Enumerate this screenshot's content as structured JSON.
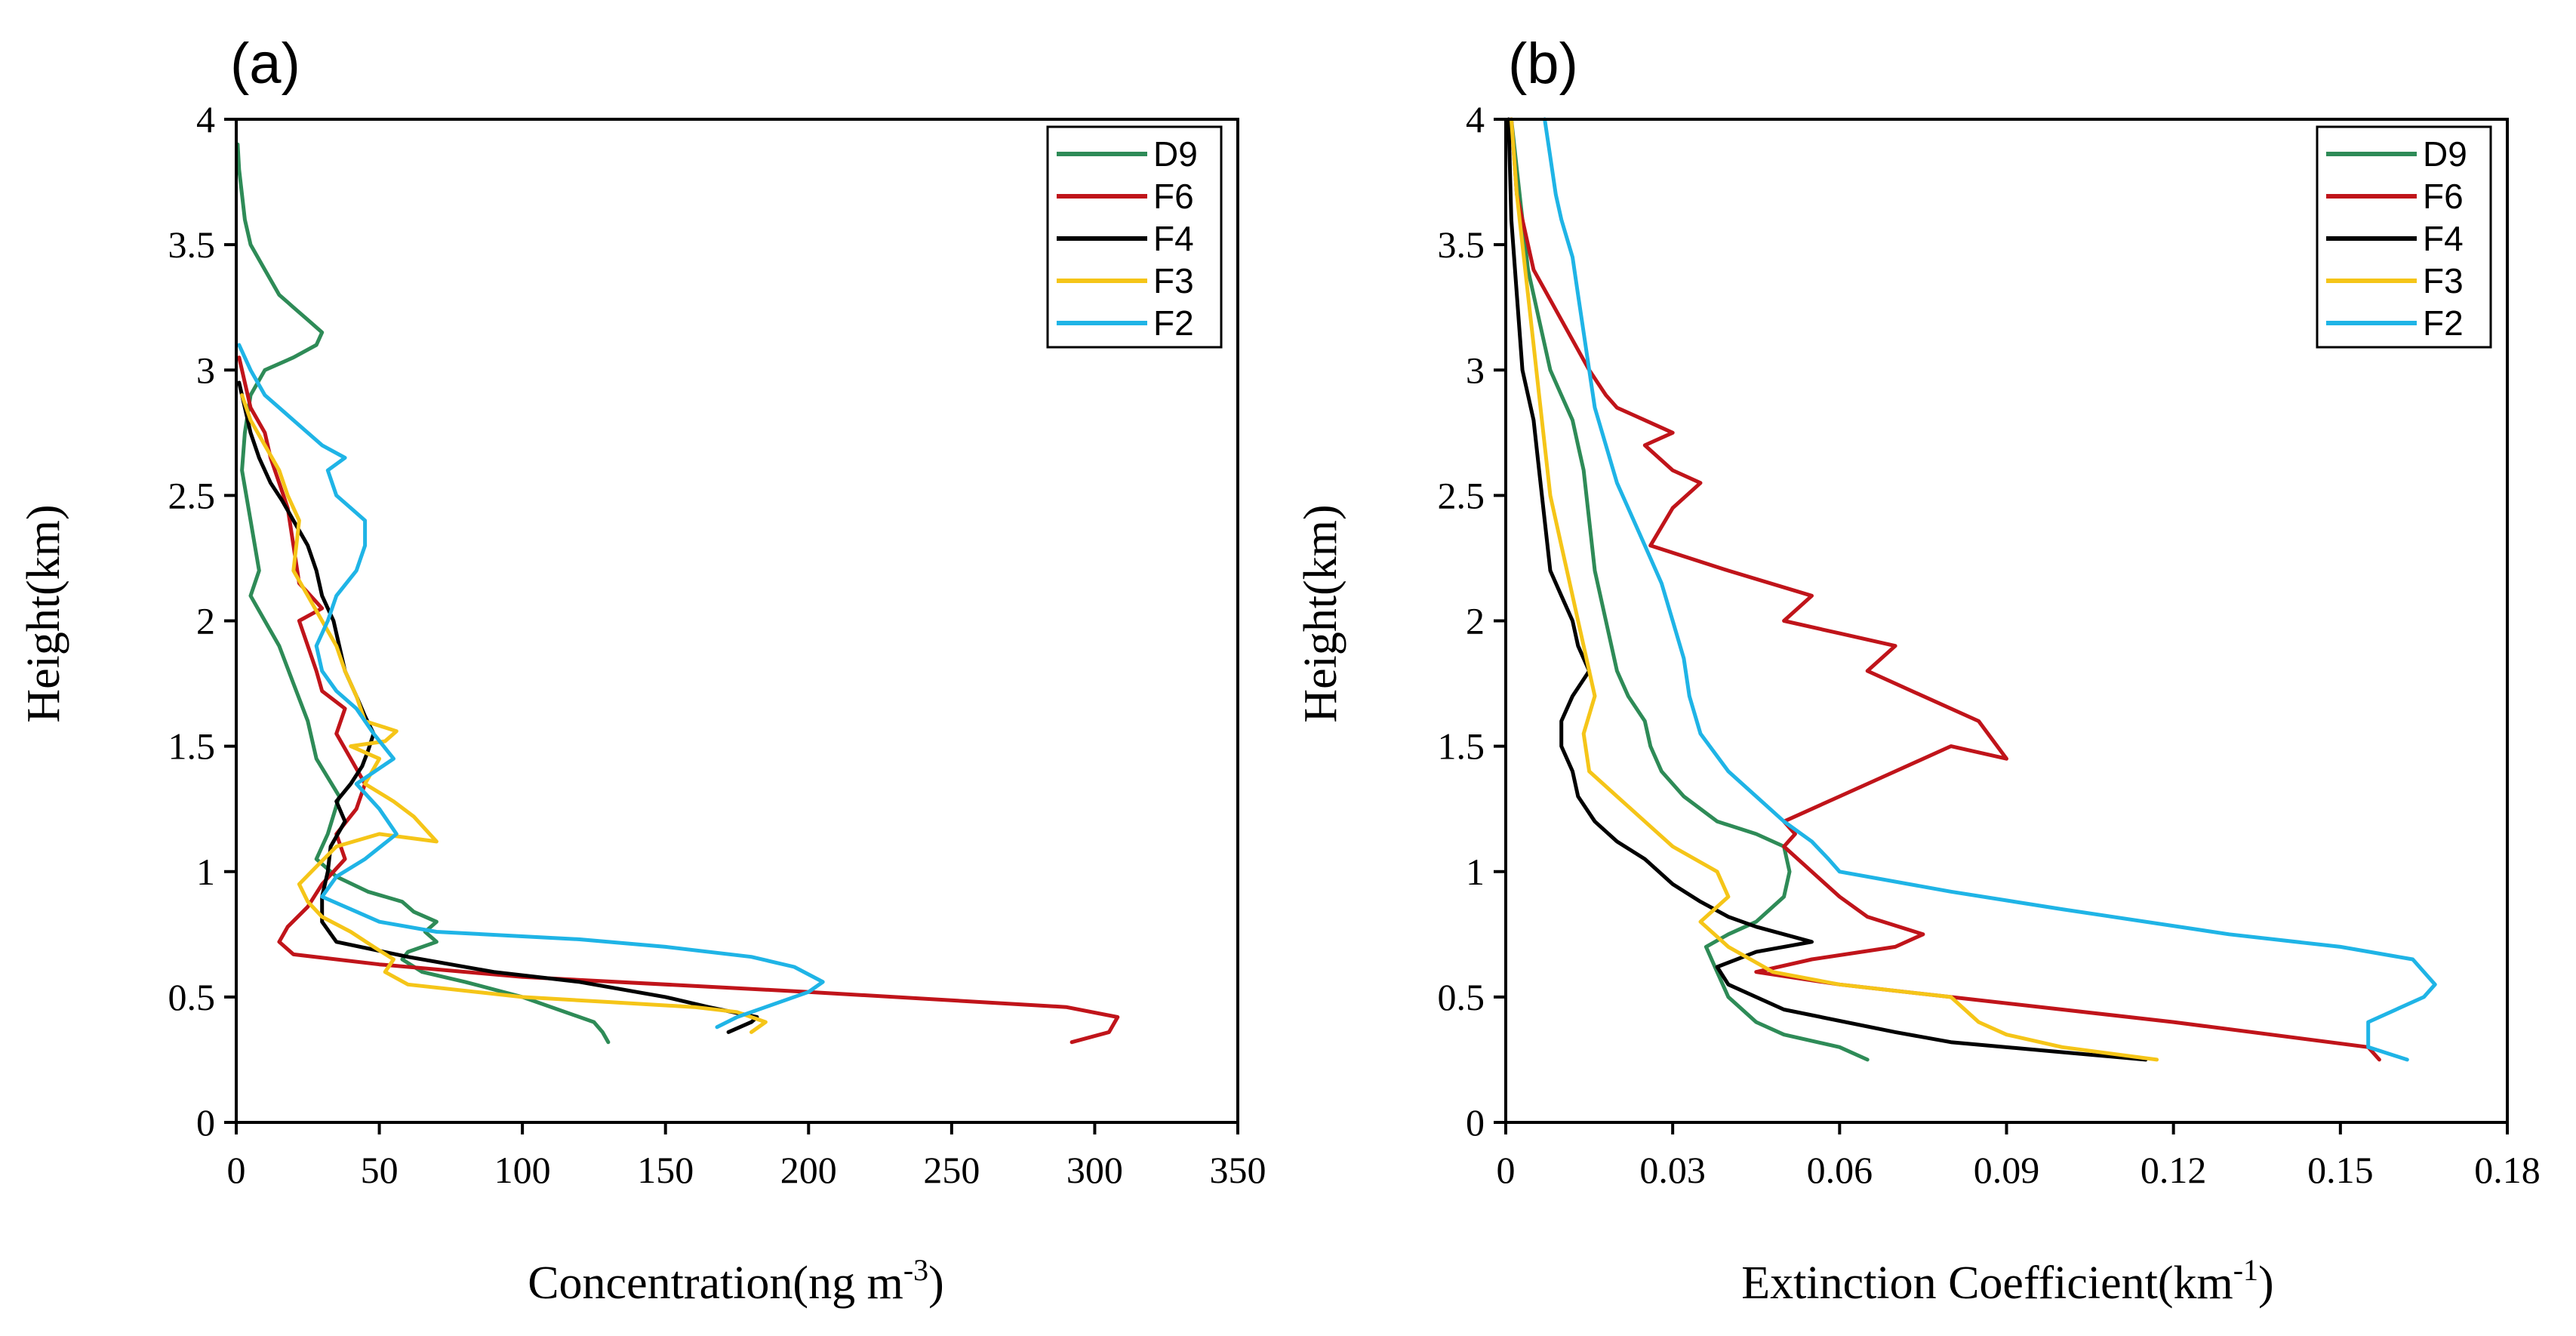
{
  "figure": {
    "colors": {
      "D9": "#2e8b57",
      "F6": "#c0141a",
      "F4": "#000000",
      "F3": "#f5c518",
      "F2": "#1fb4e6"
    }
  },
  "chart_data": [
    {
      "type": "line",
      "panel_label": "(a)",
      "title": "",
      "xlabel": "Concentration(ng m",
      "xlabel_sup": "-3",
      "xlabel_end": ")",
      "ylabel": "Height(km)",
      "xlim": [
        0,
        350
      ],
      "ylim": [
        0,
        4
      ],
      "xticks": [
        0,
        50,
        100,
        150,
        200,
        250,
        300,
        350
      ],
      "yticks": [
        0,
        0.5,
        1,
        1.5,
        2,
        2.5,
        3,
        3.5,
        4
      ],
      "legend_position": "top-right",
      "series": [
        {
          "name": "D9",
          "x": [
            130,
            128,
            125,
            100,
            80,
            65,
            58,
            60,
            70,
            66,
            70,
            62,
            58,
            46,
            35,
            28,
            32,
            36,
            28,
            25,
            20,
            15,
            10,
            5,
            8,
            5,
            2,
            3,
            5,
            10,
            20,
            28,
            30,
            25,
            20,
            15,
            10,
            5,
            3,
            2,
            1,
            0.5
          ],
          "y": [
            0.32,
            0.36,
            0.4,
            0.5,
            0.56,
            0.6,
            0.65,
            0.68,
            0.72,
            0.76,
            0.8,
            0.84,
            0.88,
            0.92,
            0.98,
            1.05,
            1.15,
            1.3,
            1.45,
            1.6,
            1.75,
            1.9,
            2.0,
            2.1,
            2.2,
            2.4,
            2.6,
            2.75,
            2.9,
            3.0,
            3.05,
            3.1,
            3.15,
            3.2,
            3.25,
            3.3,
            3.4,
            3.5,
            3.6,
            3.7,
            3.8,
            3.9
          ]
        },
        {
          "name": "F6",
          "x": [
            292,
            305,
            308,
            290,
            200,
            100,
            50,
            20,
            15,
            18,
            25,
            30,
            38,
            35,
            42,
            45,
            40,
            35,
            38,
            30,
            28,
            25,
            22,
            30,
            22,
            20,
            18,
            15,
            12,
            10,
            5,
            3,
            1
          ],
          "y": [
            0.32,
            0.36,
            0.42,
            0.46,
            0.52,
            0.58,
            0.63,
            0.67,
            0.72,
            0.78,
            0.86,
            0.95,
            1.05,
            1.15,
            1.25,
            1.35,
            1.45,
            1.55,
            1.65,
            1.72,
            1.8,
            1.9,
            2.0,
            2.05,
            2.15,
            2.3,
            2.45,
            2.55,
            2.65,
            2.75,
            2.85,
            2.95,
            3.05
          ]
        },
        {
          "name": "F4",
          "x": [
            172,
            180,
            182,
            165,
            150,
            120,
            90,
            60,
            35,
            30,
            30,
            32,
            33,
            38,
            35,
            40,
            44,
            46,
            48,
            45,
            42,
            38,
            36,
            34,
            30,
            28,
            25,
            20,
            16,
            12,
            8,
            5,
            3,
            1
          ],
          "y": [
            0.36,
            0.4,
            0.42,
            0.46,
            0.5,
            0.56,
            0.6,
            0.66,
            0.72,
            0.8,
            0.9,
            1.0,
            1.1,
            1.2,
            1.28,
            1.35,
            1.42,
            1.48,
            1.55,
            1.62,
            1.7,
            1.8,
            1.9,
            2.0,
            2.1,
            2.2,
            2.3,
            2.4,
            2.48,
            2.55,
            2.65,
            2.75,
            2.85,
            2.95
          ]
        },
        {
          "name": "F3",
          "x": [
            180,
            185,
            175,
            160,
            130,
            100,
            60,
            52,
            55,
            48,
            40,
            30,
            25,
            22,
            28,
            35,
            50,
            70,
            62,
            55,
            45,
            50,
            40,
            52,
            56,
            45,
            42,
            38,
            35,
            30,
            25,
            20,
            22,
            18,
            15,
            10,
            5,
            2
          ],
          "y": [
            0.36,
            0.4,
            0.44,
            0.46,
            0.48,
            0.5,
            0.55,
            0.6,
            0.65,
            0.7,
            0.76,
            0.82,
            0.88,
            0.95,
            1.02,
            1.1,
            1.15,
            1.12,
            1.22,
            1.28,
            1.35,
            1.45,
            1.5,
            1.52,
            1.56,
            1.6,
            1.7,
            1.8,
            1.9,
            2.0,
            2.1,
            2.2,
            2.4,
            2.5,
            2.6,
            2.7,
            2.8,
            2.9
          ]
        },
        {
          "name": "F2",
          "x": [
            168,
            175,
            185,
            200,
            205,
            195,
            180,
            150,
            120,
            70,
            50,
            40,
            30,
            35,
            45,
            56,
            50,
            42,
            55,
            48,
            42,
            35,
            30,
            28,
            32,
            35,
            42,
            45,
            45,
            40,
            35,
            32,
            38,
            30,
            20,
            10,
            5,
            1
          ],
          "y": [
            0.38,
            0.42,
            0.46,
            0.52,
            0.56,
            0.62,
            0.66,
            0.7,
            0.73,
            0.76,
            0.8,
            0.85,
            0.9,
            0.98,
            1.05,
            1.15,
            1.25,
            1.35,
            1.45,
            1.55,
            1.65,
            1.72,
            1.8,
            1.9,
            2.0,
            2.1,
            2.2,
            2.3,
            2.4,
            2.45,
            2.5,
            2.6,
            2.65,
            2.7,
            2.8,
            2.9,
            3.0,
            3.1
          ]
        }
      ]
    },
    {
      "type": "line",
      "panel_label": "(b)",
      "title": "",
      "xlabel": "Extinction Coefficient(km",
      "xlabel_sup": "-1",
      "xlabel_end": ")",
      "ylabel": "Height(km)",
      "xlim": [
        0,
        0.18
      ],
      "ylim": [
        0,
        4
      ],
      "xtick_labels": [
        "0",
        "0.03",
        "0.06",
        "0.09",
        "0.12",
        "0.15",
        "0.18"
      ],
      "xticks": [
        0,
        0.03,
        0.06,
        0.09,
        0.12,
        0.15,
        0.18
      ],
      "yticks": [
        0,
        0.5,
        1,
        1.5,
        2,
        2.5,
        3,
        3.5,
        4
      ],
      "legend_position": "top-right",
      "series": [
        {
          "name": "D9",
          "x": [
            0.065,
            0.06,
            0.05,
            0.045,
            0.04,
            0.038,
            0.036,
            0.04,
            0.045,
            0.05,
            0.051,
            0.05,
            0.045,
            0.038,
            0.032,
            0.028,
            0.026,
            0.025,
            0.022,
            0.02,
            0.018,
            0.016,
            0.015,
            0.014,
            0.013,
            0.012,
            0.01,
            0.008,
            0.007,
            0.006,
            0.005,
            0.004,
            0.003,
            0.002,
            0.001
          ],
          "y": [
            0.25,
            0.3,
            0.35,
            0.4,
            0.5,
            0.6,
            0.7,
            0.75,
            0.8,
            0.9,
            1.0,
            1.1,
            1.15,
            1.2,
            1.3,
            1.4,
            1.5,
            1.6,
            1.7,
            1.8,
            2.0,
            2.2,
            2.4,
            2.6,
            2.7,
            2.8,
            2.9,
            3.0,
            3.1,
            3.2,
            3.3,
            3.4,
            3.6,
            3.8,
            4.0
          ]
        },
        {
          "name": "F6",
          "x": [
            0.157,
            0.155,
            0.12,
            0.08,
            0.06,
            0.045,
            0.055,
            0.07,
            0.075,
            0.065,
            0.06,
            0.055,
            0.05,
            0.052,
            0.05,
            0.06,
            0.07,
            0.08,
            0.09,
            0.085,
            0.075,
            0.065,
            0.07,
            0.06,
            0.05,
            0.055,
            0.04,
            0.026,
            0.03,
            0.035,
            0.03,
            0.025,
            0.03,
            0.025,
            0.02,
            0.018,
            0.015,
            0.01,
            0.005,
            0.002,
            0.001
          ],
          "y": [
            0.25,
            0.3,
            0.4,
            0.5,
            0.55,
            0.6,
            0.65,
            0.7,
            0.75,
            0.82,
            0.9,
            1.0,
            1.1,
            1.15,
            1.2,
            1.3,
            1.4,
            1.5,
            1.45,
            1.6,
            1.7,
            1.8,
            1.9,
            1.95,
            2.0,
            2.1,
            2.2,
            2.3,
            2.45,
            2.55,
            2.6,
            2.7,
            2.75,
            2.8,
            2.85,
            2.9,
            3.0,
            3.2,
            3.4,
            3.7,
            4.0
          ]
        },
        {
          "name": "F4",
          "x": [
            0.115,
            0.1,
            0.08,
            0.07,
            0.05,
            0.04,
            0.038,
            0.045,
            0.055,
            0.05,
            0.045,
            0.04,
            0.035,
            0.03,
            0.025,
            0.02,
            0.016,
            0.013,
            0.012,
            0.01,
            0.01,
            0.012,
            0.015,
            0.013,
            0.012,
            0.01,
            0.008,
            0.007,
            0.006,
            0.005,
            0.003,
            0.002,
            0.001,
            0.0005
          ],
          "y": [
            0.25,
            0.28,
            0.32,
            0.36,
            0.45,
            0.55,
            0.62,
            0.68,
            0.72,
            0.75,
            0.78,
            0.82,
            0.88,
            0.95,
            1.05,
            1.12,
            1.2,
            1.3,
            1.4,
            1.5,
            1.6,
            1.7,
            1.8,
            1.9,
            2.0,
            2.1,
            2.2,
            2.4,
            2.6,
            2.8,
            3.0,
            3.3,
            3.6,
            4.0
          ]
        },
        {
          "name": "F3",
          "x": [
            0.117,
            0.1,
            0.09,
            0.085,
            0.08,
            0.06,
            0.048,
            0.04,
            0.035,
            0.04,
            0.038,
            0.03,
            0.025,
            0.02,
            0.015,
            0.014,
            0.016,
            0.015,
            0.014,
            0.013,
            0.012,
            0.01,
            0.008,
            0.007,
            0.006,
            0.005,
            0.004,
            0.003,
            0.002,
            0.001
          ],
          "y": [
            0.25,
            0.3,
            0.35,
            0.4,
            0.5,
            0.55,
            0.6,
            0.7,
            0.8,
            0.9,
            1.0,
            1.1,
            1.2,
            1.3,
            1.4,
            1.55,
            1.7,
            1.8,
            1.9,
            2.0,
            2.1,
            2.3,
            2.5,
            2.7,
            2.9,
            3.1,
            3.3,
            3.5,
            3.7,
            4.0
          ]
        },
        {
          "name": "F2",
          "x": [
            0.162,
            0.155,
            0.155,
            0.165,
            0.167,
            0.163,
            0.15,
            0.13,
            0.1,
            0.08,
            0.06,
            0.058,
            0.055,
            0.05,
            0.045,
            0.04,
            0.035,
            0.033,
            0.032,
            0.03,
            0.028,
            0.025,
            0.022,
            0.02,
            0.018,
            0.016,
            0.015,
            0.014,
            0.013,
            0.012,
            0.01,
            0.009,
            0.008,
            0.007
          ],
          "y": [
            0.25,
            0.3,
            0.4,
            0.5,
            0.55,
            0.65,
            0.7,
            0.75,
            0.85,
            0.92,
            1.0,
            1.05,
            1.12,
            1.2,
            1.3,
            1.4,
            1.55,
            1.7,
            1.85,
            2.0,
            2.15,
            2.3,
            2.45,
            2.55,
            2.7,
            2.85,
            3.0,
            3.15,
            3.3,
            3.45,
            3.6,
            3.7,
            3.85,
            4.0
          ]
        }
      ]
    }
  ]
}
